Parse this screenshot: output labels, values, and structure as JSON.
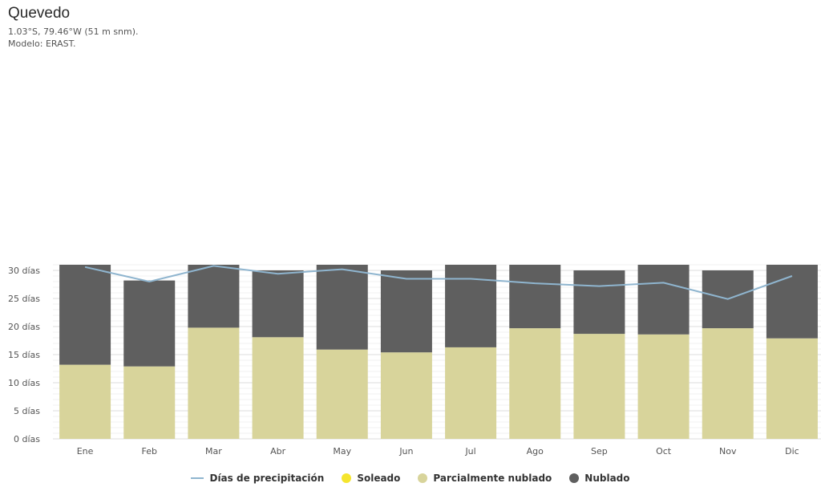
{
  "header": {
    "title": "Quevedo",
    "coords": "1.03°S, 79.46°W (51 m snm).",
    "model": "Modelo: ERAST."
  },
  "chart_data": {
    "type": "bar",
    "stacked": true,
    "categories": [
      "Ene",
      "Feb",
      "Mar",
      "Abr",
      "May",
      "Jun",
      "Jul",
      "Ago",
      "Sep",
      "Oct",
      "Nov",
      "Dic"
    ],
    "yticks": [
      "0 días",
      "5 días",
      "10 días",
      "15 días",
      "20 días",
      "25 días",
      "30 días"
    ],
    "ylim": [
      0,
      31
    ],
    "grid": true,
    "legend_position": "bottom-center",
    "series": [
      {
        "name": "Soleado",
        "kind": "bar",
        "color": "#f5e52e",
        "values": [
          0,
          0,
          0,
          0,
          0,
          0,
          0,
          0,
          0,
          0,
          0,
          0
        ]
      },
      {
        "name": "Parcialmente nublado",
        "kind": "bar",
        "color": "#d8d49b",
        "values": [
          13.2,
          12.9,
          19.8,
          18.1,
          15.9,
          15.4,
          16.3,
          19.7,
          18.7,
          18.6,
          19.7,
          17.9
        ]
      },
      {
        "name": "Nublado",
        "kind": "bar",
        "color": "#5f5f5f",
        "values": [
          17.8,
          15.3,
          11.2,
          11.9,
          15.1,
          14.6,
          14.7,
          11.3,
          11.3,
          12.4,
          10.3,
          13.1
        ]
      },
      {
        "name": "Días de precipitación",
        "kind": "line",
        "color": "#8fb5cf",
        "values": [
          30.6,
          28.0,
          30.8,
          29.4,
          30.2,
          28.5,
          28.5,
          27.7,
          27.2,
          27.8,
          24.9,
          29.0
        ]
      }
    ]
  },
  "legend": {
    "precip": "Días de precipitación",
    "sunny": "Soleado",
    "partly": "Parcialmente nublado",
    "cloudy": "Nublado"
  }
}
